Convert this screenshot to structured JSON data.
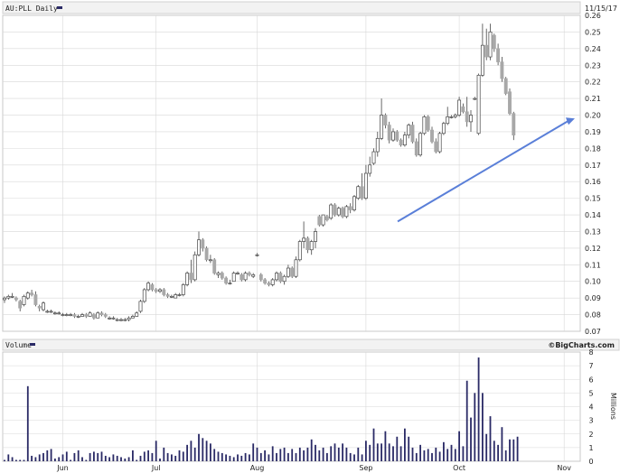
{
  "header": {
    "title": "AU:PLL Daily",
    "date": "11/15/17"
  },
  "volume_header": {
    "title": "Volume",
    "watermark": "©BigCharts.com"
  },
  "colors": {
    "up": "#ffffff",
    "down": "#a8a8a8",
    "candle_line": "#444444",
    "trend": "#5a7fd8",
    "volume_bar": "#2a2a66",
    "grid": "#d8d8d8"
  },
  "chart_data": [
    {
      "type": "candlestick",
      "ylim": [
        0.07,
        0.26
      ],
      "yticks": [
        "0.07",
        "0.08",
        "0.09",
        "0.10",
        "0.11",
        "0.12",
        "0.13",
        "0.14",
        "0.15",
        "0.16",
        "0.17",
        "0.18",
        "0.19",
        "0.20",
        "0.21",
        "0.22",
        "0.23",
        "0.24",
        "0.25",
        "0.26"
      ],
      "month_labels": [
        {
          "label": "Jun",
          "index": 15
        },
        {
          "label": "Jul",
          "index": 39
        },
        {
          "label": "Aug",
          "index": 65
        },
        {
          "label": "Sep",
          "index": 93
        },
        {
          "label": "Oct",
          "index": 117
        },
        {
          "label": "Nov",
          "index": 144
        }
      ],
      "ohlc": [
        [
          0.089,
          0.091,
          0.087,
          0.09
        ],
        [
          0.09,
          0.092,
          0.089,
          0.091
        ],
        [
          0.091,
          0.093,
          0.09,
          0.091
        ],
        [
          0.09,
          0.091,
          0.088,
          0.089
        ],
        [
          0.088,
          0.089,
          0.082,
          0.084
        ],
        [
          0.086,
          0.092,
          0.085,
          0.091
        ],
        [
          0.09,
          0.094,
          0.089,
          0.093
        ],
        [
          0.093,
          0.095,
          0.091,
          0.092
        ],
        [
          0.092,
          0.094,
          0.085,
          0.086
        ],
        [
          0.085,
          0.086,
          0.082,
          0.084
        ],
        [
          0.083,
          0.088,
          0.082,
          0.087
        ],
        [
          0.082,
          0.083,
          0.081,
          0.082
        ],
        [
          0.082,
          0.083,
          0.081,
          0.082
        ],
        [
          0.081,
          0.082,
          0.08,
          0.081
        ],
        [
          0.081,
          0.082,
          0.08,
          0.081
        ],
        [
          0.08,
          0.081,
          0.079,
          0.08
        ],
        [
          0.08,
          0.081,
          0.079,
          0.08
        ],
        [
          0.08,
          0.081,
          0.079,
          0.08
        ],
        [
          0.08,
          0.081,
          0.078,
          0.079
        ],
        [
          0.079,
          0.08,
          0.078,
          0.079
        ],
        [
          0.079,
          0.081,
          0.079,
          0.08
        ],
        [
          0.08,
          0.081,
          0.078,
          0.079
        ],
        [
          0.079,
          0.082,
          0.079,
          0.081
        ],
        [
          0.08,
          0.081,
          0.077,
          0.078
        ],
        [
          0.078,
          0.082,
          0.078,
          0.081
        ],
        [
          0.081,
          0.082,
          0.079,
          0.08
        ],
        [
          0.08,
          0.081,
          0.078,
          0.079
        ],
        [
          0.078,
          0.079,
          0.077,
          0.078
        ],
        [
          0.078,
          0.079,
          0.077,
          0.078
        ],
        [
          0.077,
          0.078,
          0.076,
          0.077
        ],
        [
          0.077,
          0.078,
          0.076,
          0.077
        ],
        [
          0.077,
          0.078,
          0.076,
          0.077
        ],
        [
          0.077,
          0.079,
          0.076,
          0.078
        ],
        [
          0.078,
          0.08,
          0.078,
          0.079
        ],
        [
          0.079,
          0.082,
          0.079,
          0.081
        ],
        [
          0.082,
          0.089,
          0.081,
          0.088
        ],
        [
          0.088,
          0.096,
          0.087,
          0.095
        ],
        [
          0.095,
          0.1,
          0.094,
          0.099
        ],
        [
          0.098,
          0.099,
          0.094,
          0.095
        ],
        [
          0.095,
          0.096,
          0.093,
          0.094
        ],
        [
          0.094,
          0.096,
          0.093,
          0.095
        ],
        [
          0.095,
          0.096,
          0.091,
          0.092
        ],
        [
          0.092,
          0.093,
          0.09,
          0.091
        ],
        [
          0.091,
          0.092,
          0.09,
          0.091
        ],
        [
          0.09,
          0.093,
          0.09,
          0.092
        ],
        [
          0.092,
          0.093,
          0.091,
          0.092
        ],
        [
          0.092,
          0.099,
          0.091,
          0.098
        ],
        [
          0.098,
          0.106,
          0.097,
          0.105
        ],
        [
          0.105,
          0.113,
          0.099,
          0.101
        ],
        [
          0.101,
          0.118,
          0.1,
          0.116
        ],
        [
          0.116,
          0.13,
          0.115,
          0.125
        ],
        [
          0.125,
          0.126,
          0.118,
          0.12
        ],
        [
          0.12,
          0.121,
          0.112,
          0.113
        ],
        [
          0.113,
          0.116,
          0.111,
          0.113
        ],
        [
          0.113,
          0.114,
          0.104,
          0.105
        ],
        [
          0.104,
          0.106,
          0.102,
          0.105
        ],
        [
          0.105,
          0.106,
          0.101,
          0.102
        ],
        [
          0.102,
          0.103,
          0.098,
          0.099
        ],
        [
          0.099,
          0.101,
          0.098,
          0.099
        ],
        [
          0.1,
          0.106,
          0.1,
          0.105
        ],
        [
          0.105,
          0.106,
          0.104,
          0.105
        ],
        [
          0.104,
          0.105,
          0.1,
          0.101
        ],
        [
          0.101,
          0.106,
          0.1,
          0.105
        ],
        [
          0.105,
          0.106,
          0.103,
          0.104
        ],
        [
          0.103,
          0.105,
          0.102,
          0.104
        ],
        [
          0.116,
          0.117,
          0.115,
          0.116
        ],
        [
          0.104,
          0.105,
          0.1,
          0.101
        ],
        [
          0.101,
          0.102,
          0.098,
          0.099
        ],
        [
          0.099,
          0.1,
          0.097,
          0.098
        ],
        [
          0.098,
          0.102,
          0.097,
          0.101
        ],
        [
          0.101,
          0.106,
          0.1,
          0.105
        ],
        [
          0.105,
          0.106,
          0.099,
          0.1
        ],
        [
          0.1,
          0.104,
          0.098,
          0.103
        ],
        [
          0.103,
          0.11,
          0.102,
          0.108
        ],
        [
          0.108,
          0.109,
          0.102,
          0.103
        ],
        [
          0.103,
          0.115,
          0.102,
          0.113
        ],
        [
          0.113,
          0.125,
          0.112,
          0.124
        ],
        [
          0.124,
          0.136,
          0.12,
          0.126
        ],
        [
          0.126,
          0.127,
          0.117,
          0.119
        ],
        [
          0.119,
          0.125,
          0.116,
          0.124
        ],
        [
          0.124,
          0.132,
          0.12,
          0.13
        ],
        [
          0.139,
          0.14,
          0.133,
          0.134
        ],
        [
          0.134,
          0.14,
          0.133,
          0.14
        ],
        [
          0.139,
          0.14,
          0.136,
          0.137
        ],
        [
          0.138,
          0.147,
          0.137,
          0.146
        ],
        [
          0.146,
          0.147,
          0.139,
          0.14
        ],
        [
          0.14,
          0.145,
          0.139,
          0.144
        ],
        [
          0.144,
          0.145,
          0.138,
          0.139
        ],
        [
          0.139,
          0.146,
          0.138,
          0.145
        ],
        [
          0.145,
          0.147,
          0.141,
          0.143
        ],
        [
          0.143,
          0.152,
          0.142,
          0.151
        ],
        [
          0.15,
          0.158,
          0.149,
          0.157
        ],
        [
          0.157,
          0.165,
          0.149,
          0.15
        ],
        [
          0.15,
          0.17,
          0.149,
          0.165
        ],
        [
          0.165,
          0.175,
          0.163,
          0.17
        ],
        [
          0.171,
          0.18,
          0.17,
          0.178
        ],
        [
          0.178,
          0.19,
          0.175,
          0.186
        ],
        [
          0.186,
          0.21,
          0.185,
          0.2
        ],
        [
          0.2,
          0.201,
          0.192,
          0.194
        ],
        [
          0.194,
          0.196,
          0.183,
          0.185
        ],
        [
          0.185,
          0.192,
          0.184,
          0.19
        ],
        [
          0.19,
          0.191,
          0.184,
          0.185
        ],
        [
          0.185,
          0.186,
          0.181,
          0.182
        ],
        [
          0.182,
          0.19,
          0.181,
          0.188
        ],
        [
          0.188,
          0.195,
          0.186,
          0.194
        ],
        [
          0.194,
          0.196,
          0.183,
          0.184
        ],
        [
          0.184,
          0.186,
          0.175,
          0.176
        ],
        [
          0.176,
          0.19,
          0.175,
          0.189
        ],
        [
          0.189,
          0.2,
          0.188,
          0.199
        ],
        [
          0.199,
          0.2,
          0.19,
          0.191
        ],
        [
          0.191,
          0.193,
          0.183,
          0.184
        ],
        [
          0.184,
          0.186,
          0.177,
          0.178
        ],
        [
          0.178,
          0.19,
          0.177,
          0.189
        ],
        [
          0.189,
          0.196,
          0.188,
          0.195
        ],
        [
          0.195,
          0.205,
          0.194,
          0.199
        ],
        [
          0.199,
          0.2,
          0.198,
          0.199
        ],
        [
          0.199,
          0.201,
          0.198,
          0.2
        ],
        [
          0.2,
          0.211,
          0.199,
          0.209
        ],
        [
          0.205,
          0.207,
          0.201,
          0.202
        ],
        [
          0.202,
          0.211,
          0.193,
          0.196
        ],
        [
          0.196,
          0.203,
          0.19,
          0.2
        ],
        [
          0.21,
          0.211,
          0.209,
          0.21
        ],
        [
          0.189,
          0.225,
          0.188,
          0.224
        ],
        [
          0.224,
          0.255,
          0.223,
          0.242
        ],
        [
          0.242,
          0.252,
          0.233,
          0.235
        ],
        [
          0.235,
          0.255,
          0.233,
          0.25
        ],
        [
          0.248,
          0.249,
          0.238,
          0.24
        ],
        [
          0.24,
          0.243,
          0.23,
          0.232
        ],
        [
          0.232,
          0.235,
          0.22,
          0.222
        ],
        [
          0.222,
          0.223,
          0.212,
          0.213
        ],
        [
          0.214,
          0.216,
          0.2,
          0.201
        ],
        [
          0.201,
          0.202,
          0.185,
          0.188
        ]
      ]
    },
    {
      "type": "bar",
      "title": "Volume",
      "ylabel": "Millions",
      "ylim": [
        0,
        8
      ],
      "yticks": [
        "0",
        "1",
        "2",
        "3",
        "4",
        "5",
        "6",
        "7",
        "8"
      ],
      "values": [
        0.1,
        0.5,
        0.3,
        0.1,
        0.1,
        0.1,
        5.5,
        0.4,
        0.3,
        0.5,
        0.6,
        0.8,
        0.9,
        0.2,
        0.3,
        0.5,
        0.7,
        0.1,
        0.6,
        0.8,
        0.3,
        0.1,
        0.6,
        0.7,
        0.6,
        0.7,
        0.4,
        0.3,
        0.5,
        0.4,
        0.3,
        0.2,
        0.3,
        0.8,
        0.1,
        0.4,
        0.7,
        0.8,
        0.6,
        1.5,
        0.2,
        1.0,
        0.6,
        0.5,
        0.4,
        0.8,
        0.7,
        1.2,
        1.5,
        1.0,
        2.0,
        1.7,
        1.5,
        1.3,
        0.9,
        0.7,
        0.6,
        0.5,
        0.4,
        0.3,
        0.5,
        0.4,
        0.6,
        0.5,
        1.3,
        1.0,
        0.6,
        0.8,
        0.5,
        1.1,
        0.6,
        0.9,
        1.0,
        0.6,
        0.9,
        0.6,
        1.0,
        0.8,
        1.0,
        1.6,
        1.2,
        0.8,
        1.0,
        0.6,
        1.1,
        1.3,
        1.0,
        1.3,
        1.0,
        0.6,
        0.5,
        1.0,
        0.5,
        1.5,
        1.2,
        2.4,
        1.3,
        1.3,
        2.2,
        1.3,
        1.1,
        1.8,
        1.1,
        2.4,
        1.8,
        1.0,
        0.6,
        1.2,
        0.8,
        0.9,
        0.6,
        1.0,
        0.7,
        1.4,
        0.9,
        1.2,
        0.9,
        2.2,
        1.1,
        5.9,
        3.2,
        5.0,
        7.6,
        5.0,
        2.0,
        3.3,
        1.5,
        1.2,
        2.5,
        0.8,
        1.6,
        1.6,
        1.8
      ]
    }
  ]
}
